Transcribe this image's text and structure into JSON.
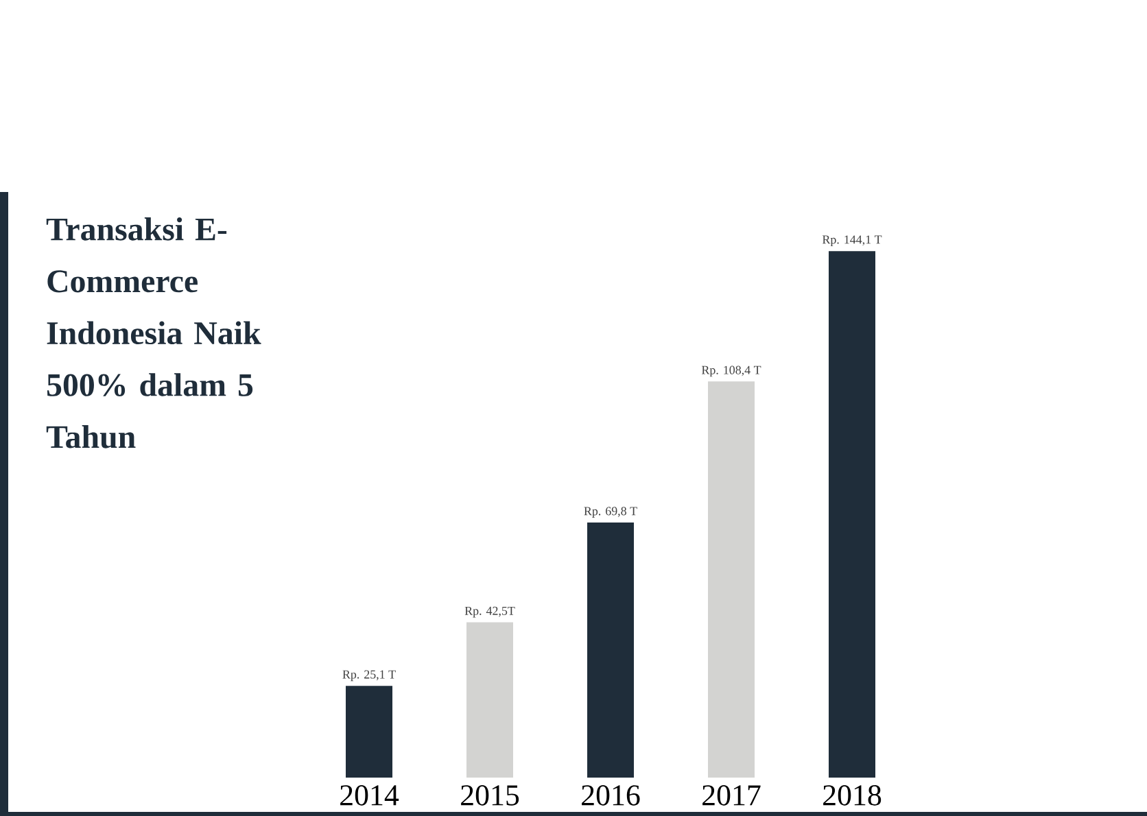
{
  "chart_data": {
    "type": "bar",
    "title": "Transaksi E-Commerce Indonesia Naik 500% dalam 5 Tahun",
    "categories": [
      "2014",
      "2015",
      "2016",
      "2017",
      "2018"
    ],
    "values": [
      25.1,
      42.5,
      69.8,
      108.4,
      144.1
    ],
    "colors": [
      "#1f2d3a",
      "#d3d3d1",
      "#1f2d3a",
      "#d3d3d1",
      "#1f2d3a"
    ],
    "value_labels": [
      "Rp. 25,1 T",
      "Rp. 42,5T",
      "Rp. 69,8 T",
      "Rp. 108,4 T",
      "Rp. 144,1 T"
    ],
    "tick_labels": "x"
  }
}
